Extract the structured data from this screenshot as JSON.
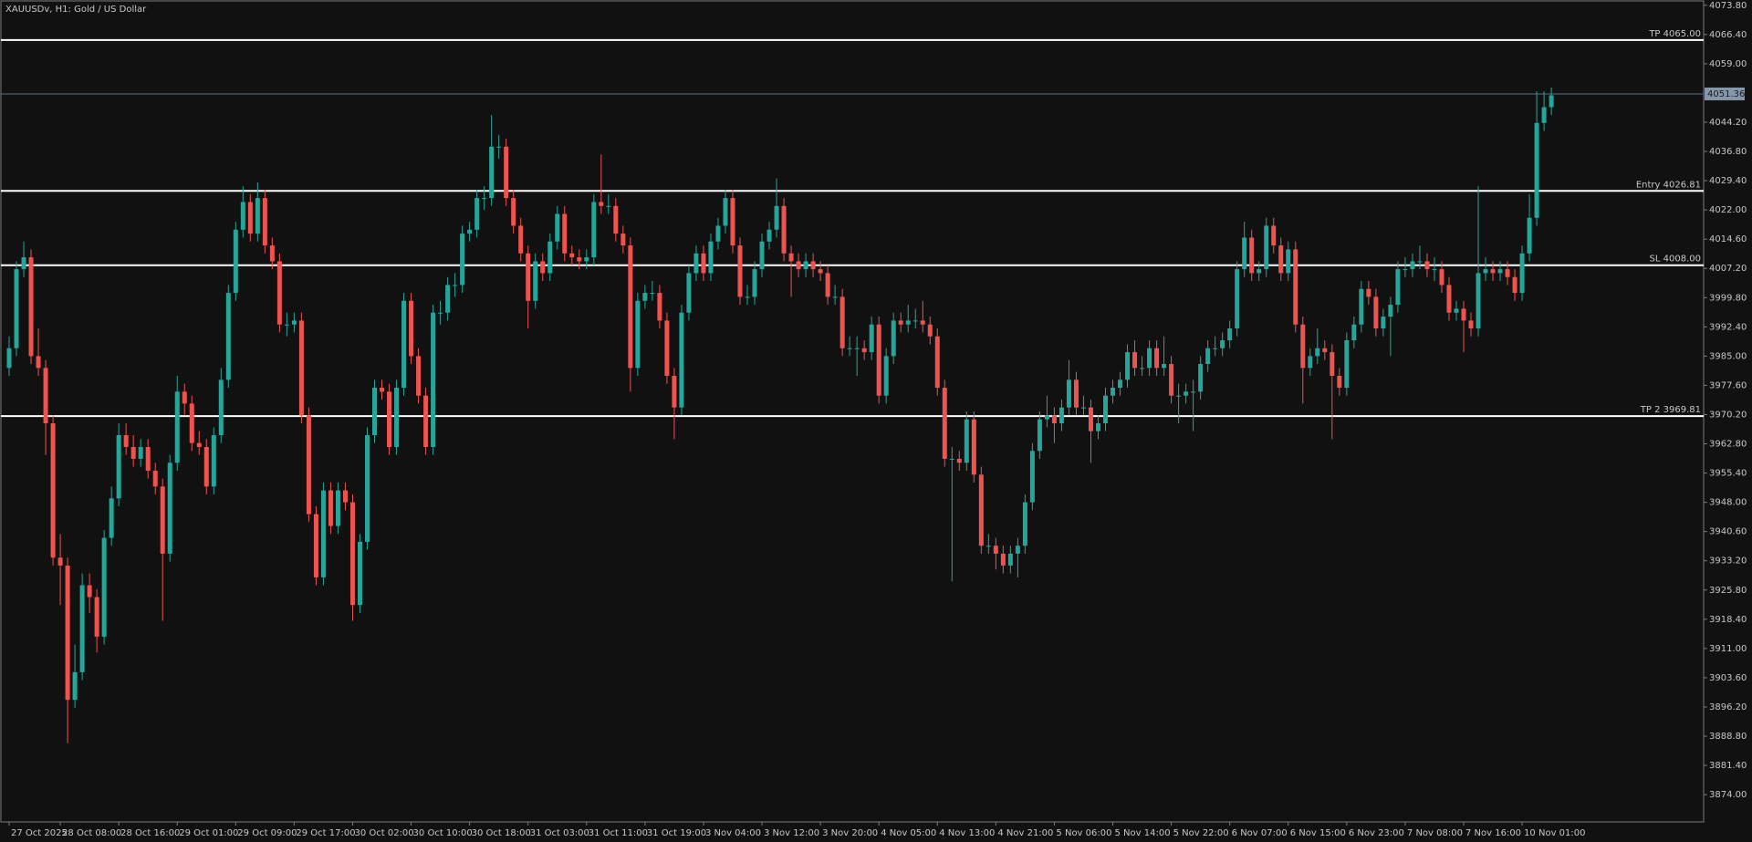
{
  "chart_data": {
    "type": "candlestick",
    "title": "XAUUSDv, H1:  Gold / US Dollar",
    "up_color": "#26a69a",
    "down_color": "#ef5350",
    "level_color": "#ffffff",
    "bid_color": "#5d7184",
    "ylim": [
      3867.1,
      4074.9
    ],
    "yticks": [
      {
        "value": 4073.8,
        "label": "4073.80"
      },
      {
        "value": 4066.4,
        "label": "4066.40"
      },
      {
        "value": 4059,
        "label": "4059.00"
      },
      {
        "value": 4044.2,
        "label": "4044.20"
      },
      {
        "value": 4036.8,
        "label": "4036.80"
      },
      {
        "value": 4029.4,
        "label": "4029.40"
      },
      {
        "value": 4022,
        "label": "4022.00"
      },
      {
        "value": 4014.6,
        "label": "4014.60"
      },
      {
        "value": 4007.2,
        "label": "4007.20"
      },
      {
        "value": 3999.8,
        "label": "3999.80"
      },
      {
        "value": 3992.4,
        "label": "3992.40"
      },
      {
        "value": 3985,
        "label": "3985.00"
      },
      {
        "value": 3977.6,
        "label": "3977.60"
      },
      {
        "value": 3970.2,
        "label": "3970.20"
      },
      {
        "value": 3962.8,
        "label": "3962.80"
      },
      {
        "value": 3955.4,
        "label": "3955.40"
      },
      {
        "value": 3948,
        "label": "3948.00"
      },
      {
        "value": 3940.6,
        "label": "3940.60"
      },
      {
        "value": 3933.2,
        "label": "3933.20"
      },
      {
        "value": 3925.8,
        "label": "3925.80"
      },
      {
        "value": 3918.4,
        "label": "3918.40"
      },
      {
        "value": 3911,
        "label": "3911.00"
      },
      {
        "value": 3903.6,
        "label": "3903.60"
      },
      {
        "value": 3896.2,
        "label": "3896.20"
      },
      {
        "value": 3888.8,
        "label": "3888.80"
      },
      {
        "value": 3881.4,
        "label": "3881.40"
      },
      {
        "value": 3874,
        "label": "3874.00"
      }
    ],
    "xticks": [
      {
        "value": 0,
        "label": "27 Oct 2025"
      },
      {
        "value": 7,
        "label": "28 Oct 08:00"
      },
      {
        "value": 15,
        "label": "28 Oct 16:00"
      },
      {
        "value": 23,
        "label": "29 Oct 01:00"
      },
      {
        "value": 31,
        "label": "29 Oct 09:00"
      },
      {
        "value": 39,
        "label": "29 Oct 17:00"
      },
      {
        "value": 47,
        "label": "30 Oct 02:00"
      },
      {
        "value": 55,
        "label": "30 Oct 10:00"
      },
      {
        "value": 63,
        "label": "30 Oct 18:00"
      },
      {
        "value": 71,
        "label": "31 Oct 03:00"
      },
      {
        "value": 79,
        "label": "31 Oct 11:00"
      },
      {
        "value": 87,
        "label": "31 Oct 19:00"
      },
      {
        "value": 95,
        "label": "3 Nov 04:00"
      },
      {
        "value": 103,
        "label": "3 Nov 12:00"
      },
      {
        "value": 111,
        "label": "3 Nov 20:00"
      },
      {
        "value": 119,
        "label": "4 Nov 05:00"
      },
      {
        "value": 127,
        "label": "4 Nov 13:00"
      },
      {
        "value": 135,
        "label": "4 Nov 21:00"
      },
      {
        "value": 143,
        "label": "5 Nov 06:00"
      },
      {
        "value": 151,
        "label": "5 Nov 14:00"
      },
      {
        "value": 159,
        "label": "5 Nov 22:00"
      },
      {
        "value": 167,
        "label": "6 Nov 07:00"
      },
      {
        "value": 175,
        "label": "6 Nov 15:00"
      },
      {
        "value": 183,
        "label": "6 Nov 23:00"
      },
      {
        "value": 191,
        "label": "7 Nov 08:00"
      },
      {
        "value": 199,
        "label": "7 Nov 16:00"
      },
      {
        "value": 207,
        "label": "10 Nov 01:00"
      }
    ],
    "levels": [
      {
        "label": "TP 4065.00",
        "value": 4065
      },
      {
        "label": "Entry 4026.81",
        "value": 4026.81
      },
      {
        "label": "SL 4008.00",
        "value": 4008
      },
      {
        "label": "TP 2 3969.81",
        "value": 3969.81
      }
    ],
    "bid": {
      "value": 4051.36,
      "label": "4051.36"
    },
    "candles": [
      [
        3982,
        3990,
        3980,
        3987
      ],
      [
        3987,
        4009,
        3985,
        4007
      ],
      [
        4007,
        4014,
        4005,
        4010
      ],
      [
        4010,
        4012,
        3983,
        3985
      ],
      [
        3985,
        3992,
        3980,
        3982
      ],
      [
        3982,
        3984,
        3960,
        3968
      ],
      [
        3968,
        3970,
        3932,
        3934
      ],
      [
        3934,
        3940,
        3922,
        3932
      ],
      [
        3932,
        3934,
        3887,
        3898
      ],
      [
        3898,
        3912,
        3896,
        3905
      ],
      [
        3905,
        3930,
        3903,
        3927
      ],
      [
        3927,
        3930,
        3920,
        3924
      ],
      [
        3924,
        3926,
        3910,
        3914
      ],
      [
        3914,
        3941,
        3912,
        3939
      ],
      [
        3939,
        3952,
        3937,
        3949
      ],
      [
        3949,
        3968,
        3947,
        3965
      ],
      [
        3965,
        3968,
        3960,
        3962
      ],
      [
        3962,
        3965,
        3957,
        3959
      ],
      [
        3959,
        3964,
        3957,
        3962
      ],
      [
        3962,
        3964,
        3954,
        3956
      ],
      [
        3956,
        3958,
        3950,
        3952
      ],
      [
        3952,
        3954,
        3918,
        3935
      ],
      [
        3935,
        3960,
        3933,
        3958
      ],
      [
        3958,
        3980,
        3956,
        3976
      ],
      [
        3976,
        3978,
        3970,
        3973
      ],
      [
        3973,
        3975,
        3961,
        3963
      ],
      [
        3963,
        3966,
        3960,
        3962
      ],
      [
        3962,
        3964,
        3950,
        3952
      ],
      [
        3952,
        3967,
        3950,
        3965
      ],
      [
        3965,
        3982,
        3963,
        3979
      ],
      [
        3979,
        4003,
        3977,
        4001
      ],
      [
        4001,
        4019,
        3999,
        4017
      ],
      [
        4017,
        4028,
        4015,
        4024
      ],
      [
        4024,
        4026,
        4014,
        4016
      ],
      [
        4016,
        4029,
        4014,
        4025
      ],
      [
        4025,
        4027,
        4011,
        4013
      ],
      [
        4013,
        4015,
        4007,
        4009
      ],
      [
        4009,
        4011,
        3991,
        3993
      ],
      [
        3993,
        3996,
        3990,
        3993
      ],
      [
        3993,
        3996,
        3991,
        3994
      ],
      [
        3994,
        3996,
        3968,
        3970
      ],
      [
        3970,
        3972,
        3943,
        3945
      ],
      [
        3945,
        3947,
        3927,
        3929
      ],
      [
        3929,
        3953,
        3927,
        3951
      ],
      [
        3951,
        3953,
        3940,
        3942
      ],
      [
        3942,
        3953,
        3940,
        3951
      ],
      [
        3951,
        3953,
        3946,
        3948
      ],
      [
        3948,
        3950,
        3918,
        3922
      ],
      [
        3922,
        3940,
        3920,
        3938
      ],
      [
        3938,
        3967,
        3936,
        3965
      ],
      [
        3965,
        3979,
        3963,
        3977
      ],
      [
        3977,
        3979,
        3974,
        3976
      ],
      [
        3976,
        3978,
        3960,
        3962
      ],
      [
        3962,
        3979,
        3960,
        3977
      ],
      [
        3977,
        4001,
        3975,
        3999
      ],
      [
        3999,
        4001,
        3983,
        3985
      ],
      [
        3985,
        3987,
        3973,
        3975
      ],
      [
        3975,
        3977,
        3960,
        3962
      ],
      [
        3962,
        3998,
        3960,
        3996
      ],
      [
        3996,
        3999,
        3993,
        3996
      ],
      [
        3996,
        4005,
        3994,
        4003
      ],
      [
        4003,
        4006,
        4000,
        4003
      ],
      [
        4003,
        4018,
        4001,
        4016
      ],
      [
        4016,
        4019,
        4014,
        4017
      ],
      [
        4017,
        4027,
        4015,
        4025
      ],
      [
        4025,
        4028,
        4022,
        4025
      ],
      [
        4025,
        4046,
        4023,
        4038
      ],
      [
        4038,
        4041,
        4035,
        4038
      ],
      [
        4038,
        4040,
        4023,
        4025
      ],
      [
        4025,
        4027,
        4016,
        4018
      ],
      [
        4018,
        4020,
        4009,
        4011
      ],
      [
        4011,
        4013,
        3992,
        3999
      ],
      [
        3999,
        4011,
        3997,
        4009
      ],
      [
        4009,
        4011,
        4004,
        4006
      ],
      [
        4006,
        4016,
        4004,
        4014
      ],
      [
        4014,
        4023,
        4012,
        4021
      ],
      [
        4021,
        4023,
        4009,
        4011
      ],
      [
        4011,
        4013,
        4008,
        4010
      ],
      [
        4010,
        4012,
        4007,
        4009
      ],
      [
        4009,
        4012,
        4007,
        4010
      ],
      [
        4010,
        4026,
        4008,
        4024
      ],
      [
        4024,
        4036,
        4021,
        4023
      ],
      [
        4023,
        4026,
        4021,
        4023
      ],
      [
        4023,
        4025,
        4014,
        4016
      ],
      [
        4016,
        4018,
        4011,
        4013
      ],
      [
        4013,
        4015,
        3976,
        3982
      ],
      [
        3982,
        4001,
        3980,
        3999
      ],
      [
        3999,
        4003,
        3997,
        4001
      ],
      [
        4001,
        4004,
        3999,
        4001
      ],
      [
        4001,
        4003,
        3992,
        3994
      ],
      [
        3994,
        3996,
        3978,
        3980
      ],
      [
        3980,
        3982,
        3964,
        3972
      ],
      [
        3972,
        3998,
        3970,
        3996
      ],
      [
        3996,
        4008,
        3994,
        4006
      ],
      [
        4006,
        4013,
        4004,
        4011
      ],
      [
        4011,
        4013,
        4004,
        4006
      ],
      [
        4006,
        4016,
        4004,
        4014
      ],
      [
        4014,
        4020,
        4012,
        4018
      ],
      [
        4018,
        4027,
        4016,
        4025
      ],
      [
        4025,
        4027,
        4011,
        4013
      ],
      [
        4013,
        4015,
        3998,
        4000
      ],
      [
        4000,
        4003,
        3998,
        4000
      ],
      [
        4000,
        4009,
        3998,
        4007
      ],
      [
        4007,
        4016,
        4005,
        4014
      ],
      [
        4014,
        4019,
        4012,
        4017
      ],
      [
        4017,
        4030,
        4015,
        4023
      ],
      [
        4023,
        4025,
        4009,
        4011
      ],
      [
        4011,
        4013,
        4000,
        4009
      ],
      [
        4009,
        4011,
        4005,
        4007
      ],
      [
        4007,
        4011,
        4005,
        4009
      ],
      [
        4009,
        4011,
        4005,
        4007
      ],
      [
        4007,
        4009,
        4004,
        4006
      ],
      [
        4006,
        4008,
        3998,
        4000
      ],
      [
        4000,
        4003,
        3998,
        4000
      ],
      [
        4000,
        4002,
        3985,
        3987
      ],
      [
        3987,
        3990,
        3985,
        3987
      ],
      [
        3987,
        3990,
        3980,
        3987
      ],
      [
        3987,
        3989,
        3984,
        3986
      ],
      [
        3986,
        3995,
        3984,
        3993
      ],
      [
        3993,
        3995,
        3973,
        3975
      ],
      [
        3975,
        3987,
        3973,
        3985
      ],
      [
        3985,
        3996,
        3983,
        3994
      ],
      [
        3994,
        3996,
        3991,
        3993
      ],
      [
        3993,
        3998,
        3991,
        3994
      ],
      [
        3994,
        3997,
        3992,
        3994
      ],
      [
        3994,
        3999,
        3991,
        3993
      ],
      [
        3993,
        3995,
        3988,
        3990
      ],
      [
        3990,
        3992,
        3975,
        3977
      ],
      [
        3977,
        3979,
        3957,
        3959
      ],
      [
        3959,
        3962,
        3928,
        3959
      ],
      [
        3959,
        3961,
        3956,
        3958
      ],
      [
        3958,
        3971,
        3956,
        3969
      ],
      [
        3969,
        3971,
        3953,
        3955
      ],
      [
        3955,
        3957,
        3935,
        3937
      ],
      [
        3937,
        3940,
        3935,
        3937
      ],
      [
        3937,
        3939,
        3931,
        3935
      ],
      [
        3935,
        3937,
        3930,
        3932
      ],
      [
        3932,
        3937,
        3930,
        3935
      ],
      [
        3935,
        3939,
        3929,
        3937
      ],
      [
        3937,
        3950,
        3935,
        3948
      ],
      [
        3948,
        3963,
        3946,
        3961
      ],
      [
        3961,
        3971,
        3959,
        3969
      ],
      [
        3969,
        3975,
        3967,
        3970
      ],
      [
        3970,
        3972,
        3963,
        3968
      ],
      [
        3968,
        3974,
        3966,
        3972
      ],
      [
        3972,
        3984,
        3970,
        3979
      ],
      [
        3979,
        3981,
        3970,
        3972
      ],
      [
        3972,
        3975,
        3970,
        3972
      ],
      [
        3972,
        3974,
        3958,
        3966
      ],
      [
        3966,
        3970,
        3964,
        3968
      ],
      [
        3968,
        3977,
        3966,
        3975
      ],
      [
        3975,
        3979,
        3973,
        3977
      ],
      [
        3977,
        3981,
        3975,
        3979
      ],
      [
        3979,
        3988,
        3977,
        3986
      ],
      [
        3986,
        3989,
        3980,
        3982
      ],
      [
        3982,
        3985,
        3980,
        3982
      ],
      [
        3982,
        3989,
        3980,
        3987
      ],
      [
        3987,
        3989,
        3980,
        3982
      ],
      [
        3982,
        3990,
        3980,
        3983
      ],
      [
        3983,
        3985,
        3973,
        3975
      ],
      [
        3975,
        3978,
        3968,
        3975
      ],
      [
        3975,
        3978,
        3973,
        3976
      ],
      [
        3976,
        3979,
        3966,
        3976
      ],
      [
        3976,
        3985,
        3974,
        3983
      ],
      [
        3983,
        3989,
        3981,
        3987
      ],
      [
        3987,
        3990,
        3985,
        3987
      ],
      [
        3987,
        3991,
        3985,
        3989
      ],
      [
        3989,
        3994,
        3987,
        3992
      ],
      [
        3992,
        4009,
        3990,
        4007
      ],
      [
        4007,
        4019,
        4005,
        4015
      ],
      [
        4015,
        4017,
        4004,
        4006
      ],
      [
        4006,
        4009,
        4004,
        4007
      ],
      [
        4007,
        4020,
        4005,
        4018
      ],
      [
        4018,
        4020,
        4011,
        4013
      ],
      [
        4013,
        4015,
        4004,
        4006
      ],
      [
        4006,
        4014,
        4004,
        4012
      ],
      [
        4012,
        4014,
        3991,
        3993
      ],
      [
        3993,
        3995,
        3973,
        3982
      ],
      [
        3982,
        3987,
        3980,
        3985
      ],
      [
        3985,
        3992,
        3983,
        3987
      ],
      [
        3987,
        3989,
        3984,
        3986
      ],
      [
        3986,
        3988,
        3964,
        3980
      ],
      [
        3980,
        3982,
        3975,
        3977
      ],
      [
        3977,
        3991,
        3975,
        3989
      ],
      [
        3989,
        3995,
        3987,
        3993
      ],
      [
        3993,
        4004,
        3991,
        4002
      ],
      [
        4002,
        4004,
        3998,
        4000
      ],
      [
        4000,
        4002,
        3990,
        3992
      ],
      [
        3992,
        3997,
        3990,
        3995
      ],
      [
        3995,
        4000,
        3985,
        3998
      ],
      [
        3998,
        4009,
        3996,
        4007
      ],
      [
        4007,
        4010,
        4005,
        4007
      ],
      [
        4007,
        4011,
        4005,
        4009
      ],
      [
        4009,
        4013,
        4007,
        4009
      ],
      [
        4009,
        4011,
        4005,
        4007
      ],
      [
        4007,
        4010,
        4004,
        4007
      ],
      [
        4007,
        4009,
        4001,
        4003
      ],
      [
        4003,
        4005,
        3994,
        3996
      ],
      [
        3996,
        3999,
        3994,
        3997
      ],
      [
        3997,
        3999,
        3986,
        3994
      ],
      [
        3994,
        3996,
        3990,
        3992
      ],
      [
        3992,
        4028,
        3990,
        4006
      ],
      [
        4006,
        4010,
        4004,
        4007
      ],
      [
        4007,
        4009,
        4004,
        4006
      ],
      [
        4006,
        4009,
        4004,
        4007
      ],
      [
        4007,
        4009,
        4003,
        4005
      ],
      [
        4005,
        4007,
        3999,
        4001
      ],
      [
        4001,
        4013,
        3999,
        4011
      ],
      [
        4011,
        4026,
        4009,
        4020
      ],
      [
        4020,
        4052,
        4018,
        4044
      ],
      [
        4044,
        4052,
        4042,
        4048
      ],
      [
        4048,
        4053,
        4046,
        4051
      ]
    ]
  }
}
